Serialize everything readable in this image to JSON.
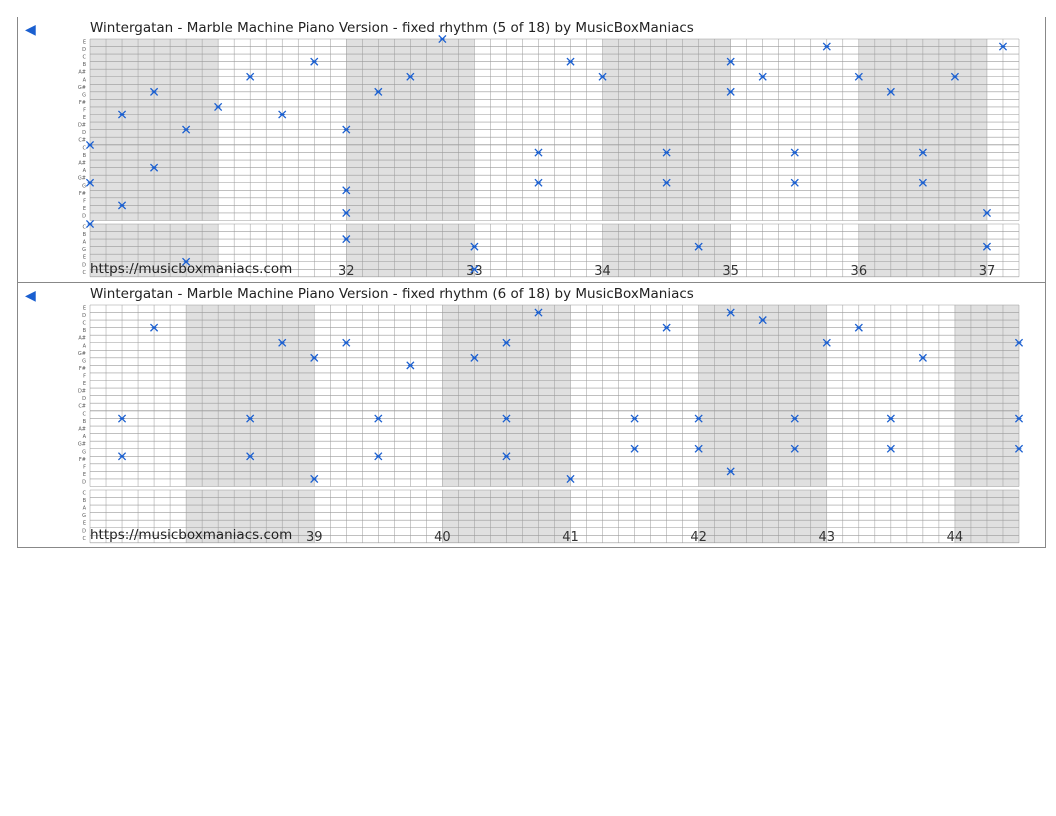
{
  "url_text": "https://musicboxmaniacs.com",
  "colors": {
    "note": "#1a5fd0",
    "shade": "#e0e0e0",
    "grid": "#9a9a9a",
    "nav": "#1a5fd0"
  },
  "note_names_upper": [
    "E",
    "D",
    "C",
    "B",
    "A#",
    "A",
    "G#",
    "G",
    "F#",
    "F",
    "E",
    "D#",
    "D",
    "C#"
  ],
  "note_names_mid": [
    "C",
    "B",
    "A#",
    "A",
    "G#",
    "G",
    "F#",
    "F",
    "E",
    "D"
  ],
  "note_names_low": [
    "C",
    "B",
    "A",
    "G",
    "E",
    "D",
    "C"
  ],
  "panels": [
    {
      "title": "Wintergatan - Marble Machine Piano Version - fixed rhythm (5 of 18) by MusicBoxManiacs",
      "measures": [
        "32",
        "33",
        "34",
        "35",
        "36",
        "37"
      ],
      "notes": [
        [
          0,
          14
        ],
        [
          8,
          6
        ],
        [
          22,
          5
        ],
        [
          26,
          3
        ],
        [
          32,
          9
        ],
        [
          36,
          7
        ],
        [
          38,
          1
        ],
        [
          10,
          8
        ],
        [
          44,
          6
        ],
        [
          60,
          8
        ],
        [
          66,
          9
        ],
        [
          78,
          4
        ],
        [
          80,
          0
        ],
        [
          88,
          9
        ],
        [
          92,
          17
        ],
        [
          96,
          19
        ],
        [
          102,
          19
        ],
        [
          2,
          12
        ],
        [
          4,
          18
        ],
        [
          10,
          16
        ],
        [
          18,
          13
        ],
        [
          28,
          11
        ],
        [
          34,
          16
        ],
        [
          40,
          13
        ],
        [
          42,
          17
        ],
        [
          48,
          11
        ],
        [
          54,
          12
        ],
        [
          56,
          14
        ],
        [
          64,
          11
        ],
        [
          72,
          21
        ],
        [
          76,
          7
        ],
        [
          84,
          13
        ],
        [
          86,
          4
        ],
        [
          90,
          12
        ],
        [
          94,
          20
        ],
        [
          98,
          23
        ],
        [
          120,
          23
        ],
        [
          104,
          21
        ],
        [
          106,
          15
        ],
        [
          108,
          17
        ],
        [
          112,
          12
        ],
        [
          114,
          13
        ],
        [
          116,
          17
        ]
      ]
    },
    {
      "title": "Wintergatan - Marble Machine Piano Version - fixed rhythm (6 of 18) by MusicBoxManiacs",
      "measures": [
        "39",
        "40",
        "41",
        "42",
        "43",
        "44"
      ],
      "notes": []
    }
  ]
}
